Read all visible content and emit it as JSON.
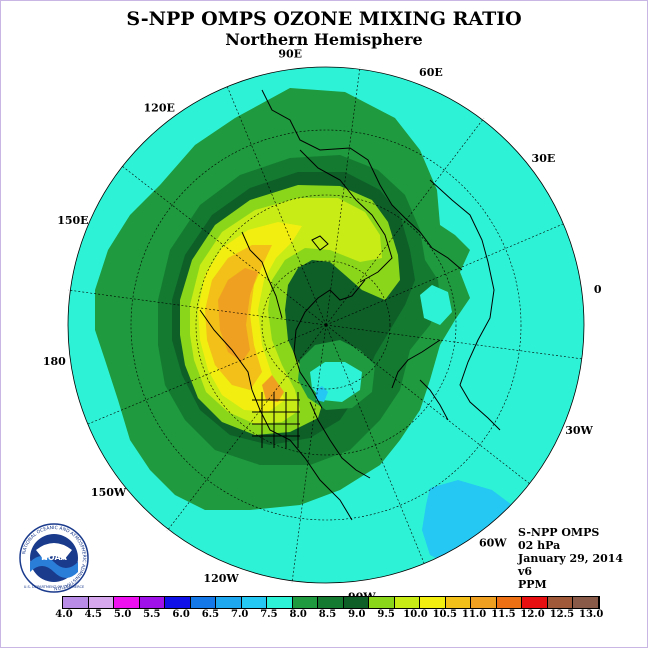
{
  "header": {
    "title": "S-NPP OMPS OZONE MIXING RATIO",
    "subtitle": "Northern Hemisphere"
  },
  "map": {
    "projection": "north-polar-stereographic",
    "longitude_labels": [
      {
        "deg": 90,
        "text": "90E"
      },
      {
        "deg": 60,
        "text": "60E"
      },
      {
        "deg": 30,
        "text": "30E"
      },
      {
        "deg": 0,
        "text": "0"
      },
      {
        "deg": -30,
        "text": "30W"
      },
      {
        "deg": -60,
        "text": "60W"
      },
      {
        "deg": -90,
        "text": "90W"
      },
      {
        "deg": -120,
        "text": "120W"
      },
      {
        "deg": -150,
        "text": "150W"
      },
      {
        "deg": 180,
        "text": "180"
      },
      {
        "deg": 150,
        "text": "150E"
      },
      {
        "deg": 120,
        "text": "120E"
      }
    ],
    "field_colors": {
      "background": "#2ef2d6",
      "level_8_0": "#1f9a3e",
      "level_8_5": "#137a30",
      "level_9_0": "#0e5e28",
      "level_9_5": "#8ad61a",
      "level_10_0": "#c7ec16",
      "level_10_5": "#f2ee10",
      "level_11_0": "#f2c018",
      "level_11_5": "#f0a020",
      "low_blue": "#24c8f2"
    }
  },
  "info": {
    "instrument": "S-NPP OMPS",
    "level": "02 hPa",
    "date": "January 29, 2014",
    "version": "v6",
    "units": "PPM"
  },
  "logo": {
    "text": "NOAA",
    "ring_text": "NATIONAL OCEANIC AND ATMOSPHERIC ADMINISTRATION",
    "bottom_text": "U.S. DEPARTMENT OF COMMERCE"
  },
  "colorbar": {
    "colors": [
      "#b98ce8",
      "#d8a8ee",
      "#ee10ee",
      "#a010e8",
      "#1010e8",
      "#1478e8",
      "#1ea8f0",
      "#24c8f2",
      "#2ef2d6",
      "#1f9a3e",
      "#137a30",
      "#0e5e28",
      "#8ad61a",
      "#c7ec16",
      "#f2ee10",
      "#f2c018",
      "#f0a020",
      "#ee7014",
      "#e81010",
      "#a05a3a",
      "#8a5a48"
    ],
    "ticks": [
      "4.0",
      "4.5",
      "5.0",
      "5.5",
      "6.0",
      "6.5",
      "7.0",
      "7.5",
      "8.0",
      "8.5",
      "9.0",
      "9.5",
      "10.0",
      "10.5",
      "11.0",
      "11.5",
      "12.0",
      "12.5",
      "13.0"
    ]
  }
}
